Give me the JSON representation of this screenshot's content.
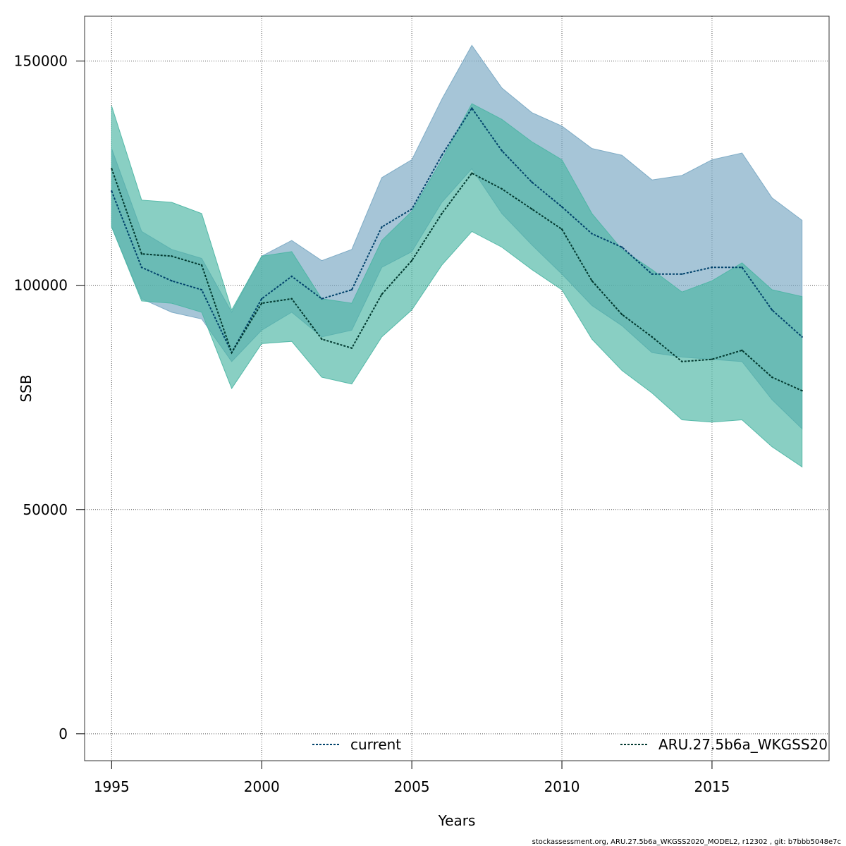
{
  "chart_data": {
    "type": "area",
    "xlabel": "Years",
    "ylabel": "SSB",
    "xlim": [
      1994.1,
      2018.9
    ],
    "ylim": [
      -6000,
      160000
    ],
    "x_ticks": [
      "1995",
      "2000",
      "2005",
      "2010",
      "2015"
    ],
    "y_ticks": [
      "0",
      "50000",
      "100000",
      "150000"
    ],
    "grid": true,
    "legend_placement": "bottom",
    "x": [
      1995,
      1996,
      1997,
      1998,
      1999,
      2000,
      2001,
      2002,
      2003,
      2004,
      2005,
      2006,
      2007,
      2008,
      2009,
      2010,
      2011,
      2012,
      2013,
      2014,
      2015,
      2016,
      2017,
      2018
    ],
    "series": [
      {
        "name": "current",
        "color": "#00426b",
        "band_color": "#77a6c2",
        "values": [
          121000,
          104000,
          101000,
          99000,
          85000,
          97000,
          102000,
          97000,
          99000,
          113000,
          117000,
          129000,
          139500,
          130000,
          123000,
          117500,
          111500,
          108500,
          102500,
          102500,
          104000,
          104000,
          94500,
          88500
        ],
        "lower": [
          113000,
          97000,
          94000,
          92500,
          83000,
          90000,
          94000,
          88500,
          90000,
          104000,
          107500,
          118500,
          126000,
          116000,
          109000,
          102500,
          95500,
          91000,
          85000,
          84000,
          83500,
          83000,
          74500,
          68000
        ],
        "upper": [
          130500,
          112000,
          108000,
          106000,
          94000,
          106500,
          110000,
          105500,
          108000,
          124000,
          128000,
          141500,
          153500,
          144000,
          138500,
          135500,
          130500,
          129000,
          123500,
          124500,
          128000,
          129500,
          119500,
          114500
        ]
      },
      {
        "name": "ARU.27.5b6a_WKGSS20",
        "color": "#00382e",
        "band_color": "#4ab5a3",
        "values": [
          126000,
          107000,
          106500,
          104500,
          85000,
          96000,
          97000,
          88000,
          86000,
          98000,
          105500,
          116000,
          125000,
          121500,
          117000,
          112500,
          101000,
          93500,
          88500,
          83000,
          83500,
          85500,
          79500,
          76500
        ],
        "lower": [
          113000,
          96500,
          96000,
          94000,
          77000,
          87000,
          87500,
          79500,
          78000,
          88500,
          94500,
          104500,
          112000,
          108500,
          103500,
          99000,
          88000,
          81000,
          76000,
          70000,
          69500,
          70000,
          64000,
          59500
        ],
        "upper": [
          140000,
          119000,
          118500,
          116000,
          94500,
          106500,
          107500,
          97000,
          96000,
          110000,
          116500,
          128000,
          140500,
          137000,
          132000,
          128000,
          116000,
          108000,
          103500,
          98500,
          101000,
          105000,
          99000,
          97500
        ]
      }
    ]
  },
  "footer": {
    "text": "stockassessment.org, ARU.27.5b6a_WKGSS2020_MODEL2, r12302 , git: b7bbb5048e7c"
  }
}
